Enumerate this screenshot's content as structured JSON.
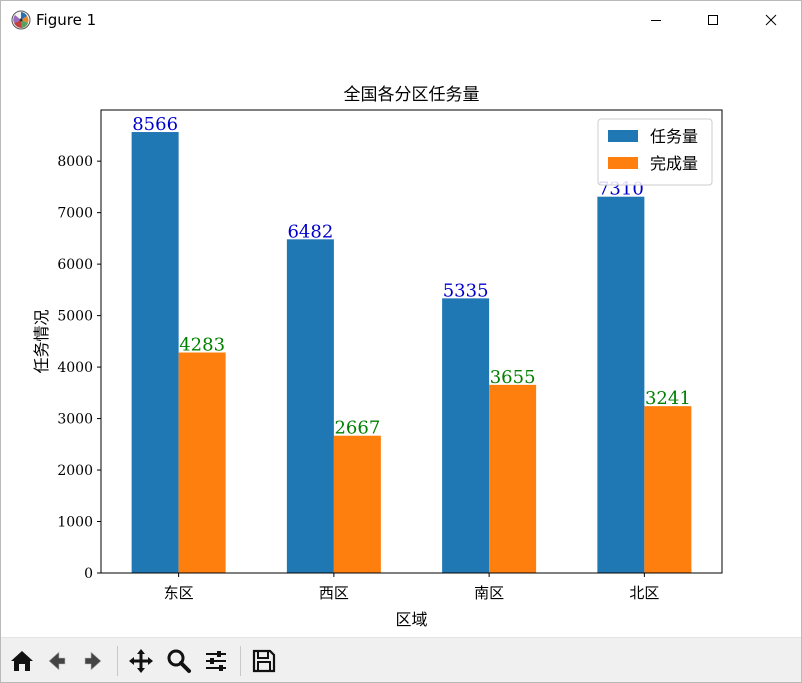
{
  "window": {
    "title": "Figure 1",
    "controls": [
      "minimize",
      "maximize",
      "close"
    ]
  },
  "chart_data": {
    "type": "bar",
    "title": "全国各分区任务量",
    "xlabel": "区域",
    "ylabel": "任务情况",
    "categories": [
      "东区",
      "西区",
      "南区",
      "北区"
    ],
    "series": [
      {
        "name": "任务量",
        "values": [
          8566,
          6482,
          5335,
          7310
        ],
        "color": "#1f77b4",
        "label_color": "#0000cc"
      },
      {
        "name": "完成量",
        "values": [
          4283,
          2667,
          3655,
          3241
        ],
        "color": "#ff7f0e",
        "label_color": "#008000"
      }
    ],
    "ylim": [
      0,
      8994
    ],
    "yticks": [
      0,
      1000,
      2000,
      3000,
      4000,
      5000,
      6000,
      7000,
      8000
    ],
    "ytick_labels": [
      "0",
      "1000",
      "2000",
      "3000",
      "4000",
      "5000",
      "6000",
      "7000",
      "8000"
    ],
    "legend": "top-right",
    "grid": false
  },
  "toolbar": {
    "buttons": [
      "home-icon",
      "back-icon",
      "forward-icon",
      "pan-icon",
      "zoom-icon",
      "configure-subplots-icon",
      "save-icon"
    ]
  }
}
